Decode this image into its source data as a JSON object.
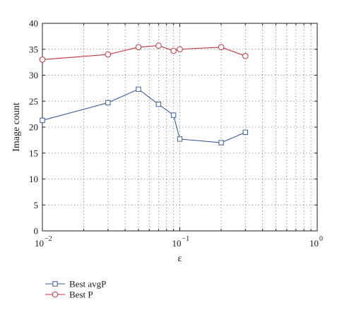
{
  "chart_data": {
    "type": "line",
    "xlabel": "ε",
    "ylabel": "Image count",
    "x_scale": "log",
    "xlim": [
      0.01,
      1
    ],
    "ylim": [
      0,
      40
    ],
    "grid": true,
    "legend_placement": "bottom-left",
    "x_ticks": [
      {
        "value": 0.01,
        "base": "10",
        "exp": "−2"
      },
      {
        "value": 0.1,
        "base": "10",
        "exp": "−1"
      },
      {
        "value": 1,
        "base": "10",
        "exp": "0"
      }
    ],
    "y_ticks": [
      0,
      5,
      10,
      15,
      20,
      25,
      30,
      35,
      40
    ],
    "series": [
      {
        "name": "Best avgP",
        "marker": "square",
        "color": "#3a5f9e",
        "x": [
          0.01,
          0.03,
          0.05,
          0.07,
          0.09,
          0.1,
          0.2,
          0.3
        ],
        "y": [
          21.3,
          24.7,
          27.3,
          24.4,
          22.3,
          17.7,
          17.0,
          19.0
        ]
      },
      {
        "name": "Best P",
        "marker": "circle",
        "color": "#c8323c",
        "x": [
          0.01,
          0.03,
          0.05,
          0.07,
          0.09,
          0.1,
          0.2,
          0.3
        ],
        "y": [
          33.0,
          34.0,
          35.4,
          35.7,
          34.7,
          35.0,
          35.4,
          33.7
        ]
      }
    ]
  }
}
